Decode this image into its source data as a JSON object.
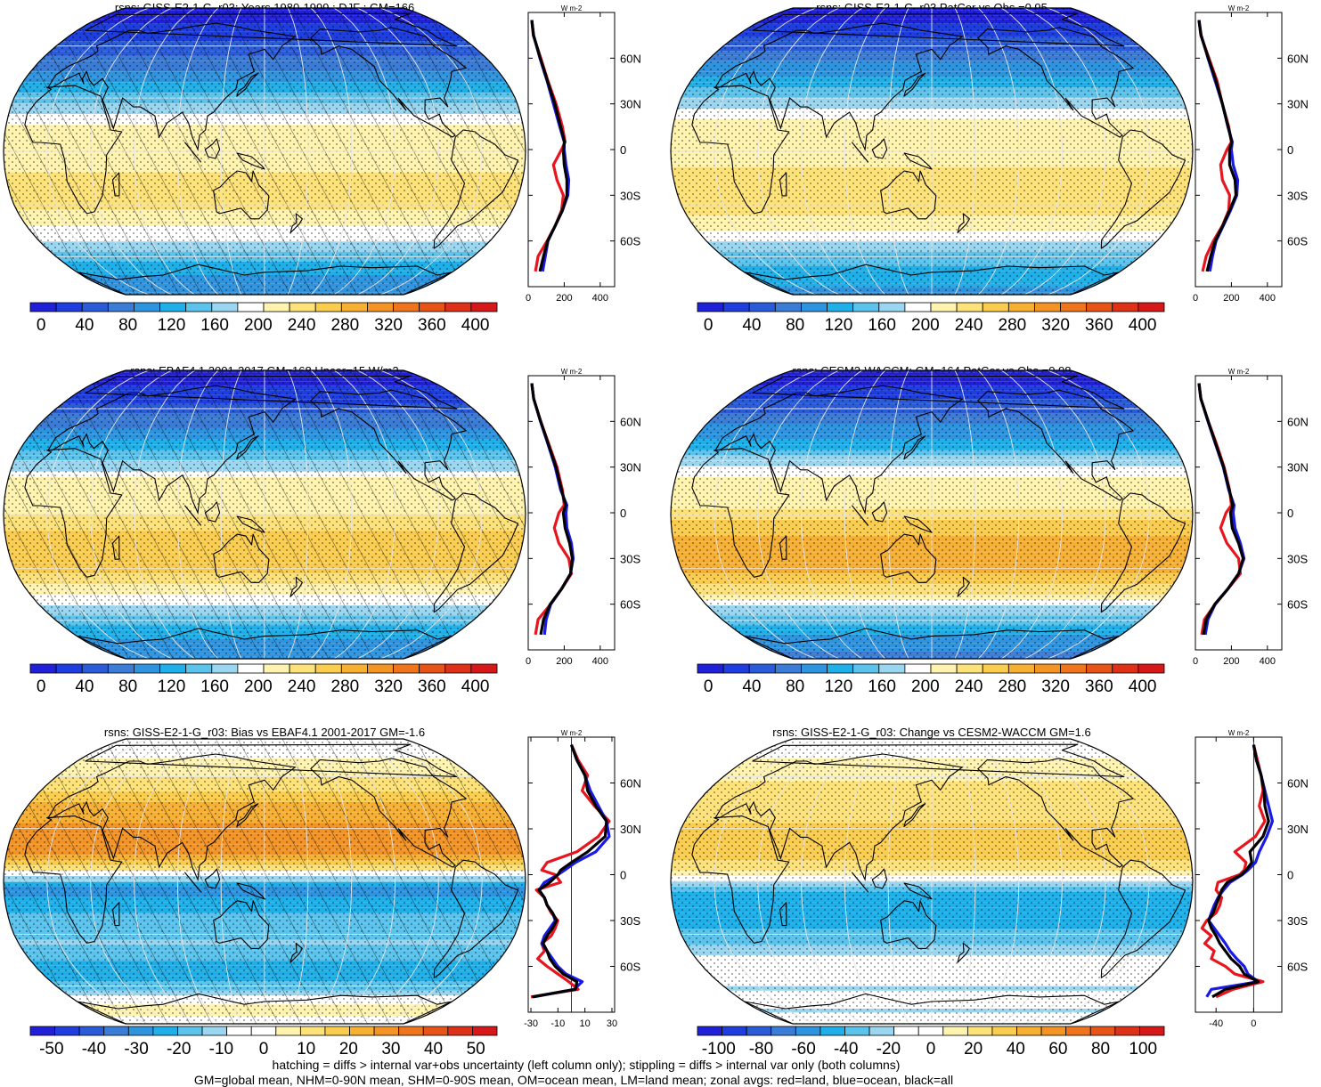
{
  "chart_data": [
    {
      "type": "heatmap",
      "title": "rsns: GISS-E2-1-G_r03: Years 1980-1999 : DJF : GM=166",
      "projection": "Robinson",
      "field": "DJF net surface shortwave, model climatology",
      "colorbar": {
        "ticks": [
          "0",
          "40",
          "80",
          "120",
          "160",
          "200",
          "240",
          "280",
          "320",
          "360",
          "400"
        ],
        "vmin": -10,
        "vmax": 420
      },
      "zonal": {
        "unit": "W m-2",
        "xlim": [
          0,
          480
        ],
        "xticks": [
          "0",
          "200",
          "400"
        ],
        "yticks": [
          "60N",
          "30N",
          "0",
          "30S",
          "60S"
        ],
        "lat": [
          85,
          75,
          60,
          45,
          30,
          15,
          5,
          0,
          -10,
          -20,
          -30,
          -40,
          -50,
          -60,
          -70,
          -80
        ],
        "series": [
          {
            "name": "land",
            "color": "#e8141e",
            "values": [
              20,
              28,
              70,
              110,
              155,
              190,
              205,
              185,
              140,
              160,
              195,
              185,
              150,
              105,
              55,
              40
            ]
          },
          {
            "name": "ocean",
            "color": "#1a1ae6",
            "values": [
              20,
              30,
              65,
              105,
              140,
              175,
              200,
              200,
              210,
              225,
              220,
              190,
              150,
              110,
              95,
              80
            ]
          },
          {
            "name": "all",
            "color": "#000000",
            "values": [
              20,
              29,
              67,
              107,
              148,
              180,
              202,
              195,
              200,
              215,
              215,
              190,
              150,
              108,
              85,
              65
            ]
          }
        ]
      }
    },
    {
      "type": "heatmap",
      "title": "rsns: GISS-E2-1-G_r03 PatCor vs Obs =0.95",
      "projection": "Robinson",
      "field": "DJF net surface shortwave, second model climatology",
      "colorbar": {
        "ticks": [
          "0",
          "40",
          "80",
          "120",
          "160",
          "200",
          "240",
          "280",
          "320",
          "360",
          "400"
        ],
        "vmin": -10,
        "vmax": 420
      },
      "zonal": {
        "unit": "W m-2",
        "xlim": [
          0,
          480
        ],
        "xticks": [
          "0",
          "200",
          "400"
        ],
        "yticks": [
          "60N",
          "30N",
          "0",
          "30S",
          "60S"
        ],
        "lat": [
          85,
          75,
          60,
          45,
          30,
          15,
          5,
          0,
          -10,
          -20,
          -30,
          -40,
          -50,
          -60,
          -70,
          -80
        ],
        "series": [
          {
            "name": "land",
            "color": "#e8141e",
            "values": [
              20,
              30,
              75,
              120,
              150,
              185,
              200,
              175,
              140,
              150,
              190,
              185,
              150,
              100,
              60,
              40
            ]
          },
          {
            "name": "ocean",
            "color": "#1a1ae6",
            "values": [
              20,
              32,
              70,
              110,
              150,
              180,
              205,
              200,
              210,
              235,
              230,
              195,
              155,
              115,
              95,
              80
            ]
          },
          {
            "name": "all",
            "color": "#000000",
            "values": [
              20,
              31,
              72,
              115,
              150,
              182,
              202,
              190,
              190,
              220,
              225,
              190,
              152,
              110,
              85,
              65
            ]
          }
        ]
      }
    },
    {
      "type": "heatmap",
      "title": "rsns: EBAF4.1 2001-2017 GM=168 Uncer=15 W/m2",
      "projection": "Robinson",
      "field": "DJF net surface shortwave, observations",
      "colorbar": {
        "ticks": [
          "0",
          "40",
          "80",
          "120",
          "160",
          "200",
          "240",
          "280",
          "320",
          "360",
          "400"
        ],
        "vmin": -10,
        "vmax": 420
      },
      "zonal": {
        "unit": "W m-2",
        "xlim": [
          0,
          480
        ],
        "xticks": [
          "0",
          "200",
          "400"
        ],
        "yticks": [
          "60N",
          "30N",
          "0",
          "30S",
          "60S"
        ],
        "lat": [
          85,
          75,
          60,
          45,
          30,
          15,
          5,
          0,
          -10,
          -20,
          -30,
          -40,
          -50,
          -60,
          -70,
          -80
        ],
        "series": [
          {
            "name": "land",
            "color": "#e8141e",
            "values": [
              20,
              30,
              70,
              115,
              160,
              190,
              200,
              170,
              145,
              170,
              225,
              240,
              185,
              125,
              55,
              40
            ]
          },
          {
            "name": "ocean",
            "color": "#1a1ae6",
            "values": [
              20,
              30,
              68,
              110,
              150,
              180,
              215,
              210,
              215,
              240,
              250,
              235,
              185,
              125,
              100,
              90
            ]
          },
          {
            "name": "all",
            "color": "#000000",
            "values": [
              20,
              30,
              69,
              112,
              155,
              185,
              208,
              195,
              205,
              230,
              245,
              235,
              185,
              122,
              85,
              70
            ]
          }
        ]
      }
    },
    {
      "type": "heatmap",
      "title": "rsns: CESM2-WACCM: GM=164 PatCor vs Obs =0.98",
      "projection": "Robinson",
      "field": "DJF net surface shortwave, reference model",
      "colorbar": {
        "ticks": [
          "0",
          "40",
          "80",
          "120",
          "160",
          "200",
          "240",
          "280",
          "320",
          "360",
          "400"
        ],
        "vmin": -10,
        "vmax": 420
      },
      "zonal": {
        "unit": "W m-2",
        "xlim": [
          0,
          480
        ],
        "xticks": [
          "0",
          "200",
          "400"
        ],
        "yticks": [
          "60N",
          "30N",
          "0",
          "30S",
          "60S"
        ],
        "lat": [
          85,
          75,
          60,
          45,
          30,
          15,
          5,
          0,
          -10,
          -20,
          -30,
          -40,
          -50,
          -60,
          -70,
          -80
        ],
        "series": [
          {
            "name": "land",
            "color": "#e8141e",
            "values": [
              20,
              30,
              72,
              118,
              160,
              190,
              200,
              170,
              140,
              175,
              240,
              250,
              180,
              110,
              50,
              35
            ]
          },
          {
            "name": "ocean",
            "color": "#1a1ae6",
            "values": [
              20,
              30,
              70,
              112,
              155,
              185,
              215,
              210,
              220,
              250,
              270,
              240,
              180,
              110,
              70,
              55
            ]
          },
          {
            "name": "all",
            "color": "#000000",
            "values": [
              20,
              30,
              71,
              114,
              157,
              188,
              208,
              195,
              205,
              240,
              265,
              240,
              180,
              108,
              60,
              45
            ]
          }
        ]
      }
    },
    {
      "type": "heatmap",
      "title": "rsns: GISS-E2-1-G_r03: Bias vs EBAF4.1 2001-2017 GM=-1.6",
      "projection": "Robinson",
      "field": "DJF net surface shortwave bias vs observations",
      "colorbar": {
        "ticks": [
          "-50",
          "-40",
          "-30",
          "-20",
          "-10",
          "0",
          "10",
          "20",
          "30",
          "40",
          "50"
        ],
        "vmin": -55,
        "vmax": 55
      },
      "zonal": {
        "unit": "W m-2",
        "xlim": [
          -32,
          32
        ],
        "xticks": [
          "-30",
          "-10",
          "10",
          "30"
        ],
        "yticks": [
          "60N",
          "30N",
          "0",
          "30S",
          "60S"
        ],
        "lat": [
          85,
          75,
          65,
          55,
          45,
          35,
          25,
          15,
          8,
          3,
          0,
          -5,
          -10,
          -15,
          -20,
          -25,
          -30,
          -35,
          -40,
          -45,
          -50,
          -55,
          -60,
          -65,
          -70,
          -75,
          -80
        ],
        "series": [
          {
            "name": "land",
            "color": "#e8141e",
            "values": [
              0,
              5,
              12,
              8,
              17,
              28,
              20,
              4,
              -18,
              -22,
              -12,
              -8,
              -26,
              -20,
              -18,
              -15,
              -10,
              -12,
              -15,
              -22,
              -20,
              -25,
              -18,
              -10,
              -2,
              5,
              -30
            ]
          },
          {
            "name": "ocean",
            "color": "#1a1ae6",
            "values": [
              0,
              4,
              10,
              14,
              20,
              26,
              28,
              18,
              3,
              -5,
              -10,
              -20,
              -24,
              -20,
              -18,
              -14,
              -12,
              -16,
              -20,
              -22,
              -18,
              -14,
              -10,
              -4,
              8,
              2,
              -28
            ]
          },
          {
            "name": "all",
            "color": "#000000",
            "values": [
              0,
              4,
              10,
              12,
              18,
              26,
              25,
              12,
              0,
              -8,
              -10,
              -16,
              -24,
              -20,
              -18,
              -14,
              -11,
              -14,
              -18,
              -21,
              -18,
              -16,
              -12,
              -6,
              4,
              3,
              -29
            ]
          }
        ]
      }
    },
    {
      "type": "heatmap",
      "title": "rsns: GISS-E2-1-G_r03: Change vs CESM2-WACCM GM=1.6",
      "projection": "Robinson",
      "field": "DJF net surface shortwave difference vs reference model",
      "colorbar": {
        "ticks": [
          "-100",
          "-80",
          "-60",
          "-40",
          "-20",
          "0",
          "20",
          "40",
          "60",
          "80",
          "100"
        ],
        "vmin": -110,
        "vmax": 110
      },
      "zonal": {
        "unit": "W m-2",
        "xlim": [
          -62,
          30
        ],
        "xticks": [
          "-40",
          "0"
        ],
        "yticks": [
          "60N",
          "30N",
          "0",
          "30S",
          "60S"
        ],
        "lat": [
          85,
          75,
          65,
          55,
          45,
          35,
          25,
          15,
          8,
          3,
          0,
          -5,
          -10,
          -15,
          -20,
          -25,
          -30,
          -35,
          -40,
          -45,
          -50,
          -55,
          -60,
          -65,
          -70,
          -75,
          -80
        ],
        "series": [
          {
            "name": "land",
            "color": "#e8141e",
            "values": [
              0,
              4,
              8,
              10,
              6,
              12,
              2,
              -20,
              -8,
              -10,
              -15,
              -38,
              -40,
              -34,
              -36,
              -40,
              -50,
              -55,
              -45,
              -52,
              -42,
              -45,
              -30,
              -20,
              10,
              -22,
              -40
            ]
          },
          {
            "name": "ocean",
            "color": "#1a1ae6",
            "values": [
              0,
              3,
              8,
              12,
              16,
              20,
              14,
              6,
              2,
              -6,
              -12,
              -25,
              -32,
              -38,
              -42,
              -45,
              -48,
              -42,
              -36,
              -30,
              -25,
              -18,
              -10,
              -6,
              5,
              -45,
              -50
            ]
          },
          {
            "name": "all",
            "color": "#000000",
            "values": [
              0,
              3,
              8,
              11,
              12,
              16,
              10,
              -4,
              -2,
              -8,
              -13,
              -28,
              -34,
              -37,
              -40,
              -43,
              -48,
              -45,
              -40,
              -36,
              -30,
              -24,
              -15,
              -10,
              5,
              -30,
              -44
            ]
          }
        ]
      }
    }
  ],
  "footer": {
    "line1": "hatching = diffs > internal var+obs uncertainty (left column only); stippling = diffs > internal var only (both columns)",
    "line2": "GM=global mean, NHM=0-90N mean, SHM=0-90S mean, OM=ocean mean, LM=land mean; zonal avgs: red=land, blue=ocean, black=all"
  },
  "colors": {
    "climatology": [
      "#2020d8",
      "#1f3ee0",
      "#2a5bd9",
      "#3a7cd6",
      "#2f94e0",
      "#1fb0ea",
      "#5cc4ec",
      "#9ad6f0",
      "#ffffff",
      "#fff3b0",
      "#fde27a",
      "#fbcd4e",
      "#f8b032",
      "#f49424",
      "#ef741c",
      "#e85418",
      "#df3018",
      "#d61818"
    ],
    "difference": [
      "#2020d8",
      "#1f3ee0",
      "#2a5bd9",
      "#3a7cd6",
      "#2f94e0",
      "#1fb0ea",
      "#5cc4ec",
      "#9ad6f0",
      "#ffffff",
      "#ffffff",
      "#fff3b0",
      "#fde27a",
      "#fbcd4e",
      "#f8b032",
      "#f49424",
      "#ef741c",
      "#e85418",
      "#df3018",
      "#d61818"
    ]
  }
}
